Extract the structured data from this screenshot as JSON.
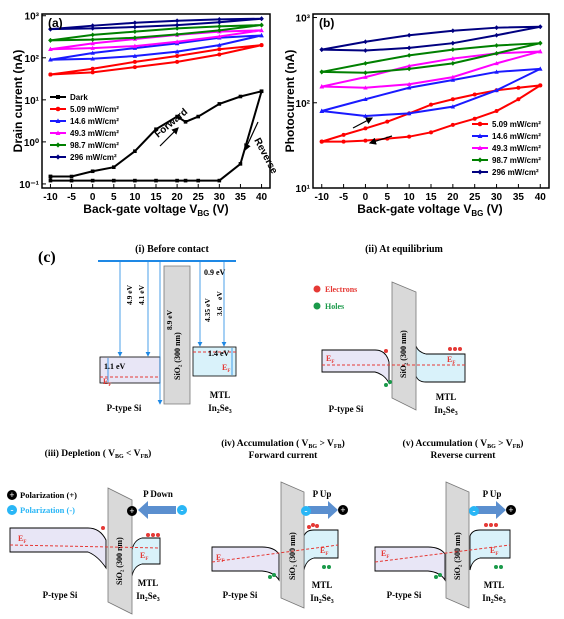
{
  "panel_a": {
    "tag": "(a)",
    "ylabel": "Drain current (nA)",
    "xlabel": "Back-gate voltage V",
    "xlabel_sub": "BG",
    "xlabel_unit": " (V)",
    "xticks": [
      "-10",
      "-5",
      "0",
      "5",
      "10",
      "15",
      "20",
      "25",
      "30",
      "35",
      "40"
    ],
    "yticks": [
      "10⁻¹",
      "10⁰",
      "10¹",
      "10²",
      "10³"
    ],
    "forward": "Forward",
    "reverse": "Reverse",
    "legend": [
      "Dark",
      "5.09 mW/cm²",
      "14.6 mW/cm²",
      "49.3 mW/cm²",
      "98.7 mW/cm²",
      "296 mW/cm²"
    ]
  },
  "panel_b": {
    "tag": "(b)",
    "ylabel": "Photocurrent (nA)",
    "xlabel": "Back-gate voltage V",
    "xlabel_sub": "BG",
    "xlabel_unit": " (V)",
    "xticks": [
      "-10",
      "-5",
      "0",
      "5",
      "10",
      "15",
      "20",
      "25",
      "30",
      "35",
      "40"
    ],
    "yticks": [
      "10¹",
      "10²",
      "10³"
    ],
    "legend": [
      "5.09 mW/cm²",
      "14.6 mW/cm²",
      "49.3 mW/cm²",
      "98.7 mW/cm²",
      "296  mW/cm²"
    ]
  },
  "colors": {
    "dark": "#000000",
    "s5": "#ff0000",
    "s14": "#1a1aff",
    "s49": "#ff00ff",
    "s98": "#008000",
    "s296": "#000080",
    "band_blue": "#1e88e5",
    "fill_si": "#e8e6f6",
    "fill_in": "#d9f2fa",
    "arrow": "#5b8fcf",
    "holes": "#1a9a4a",
    "electrons": "#e53935"
  },
  "chart_data": [
    {
      "type": "line",
      "title": "",
      "xlabel": "Back-gate voltage V_BG (V)",
      "ylabel": "Drain current (nA)",
      "xlim": [
        -12,
        42
      ],
      "ylim": [
        0.08,
        1100
      ],
      "yscale": "log",
      "legend_position": "center-left",
      "series": [
        {
          "name": "Dark",
          "x": [
            -10,
            -5,
            0,
            5,
            10,
            15,
            20,
            22,
            25,
            30,
            35,
            40
          ],
          "y_forward": [
            0.15,
            0.15,
            0.2,
            0.25,
            0.6,
            2,
            4,
            3,
            4,
            8,
            12,
            16
          ],
          "y_reverse": [
            0.12,
            0.12,
            0.12,
            0.12,
            0.12,
            0.12,
            0.12,
            0.12,
            0.12,
            0.12,
            0.3,
            16
          ]
        },
        {
          "name": "5.09 mW/cm²",
          "x": [
            -10,
            0,
            10,
            20,
            30,
            40
          ],
          "y_forward": [
            40,
            55,
            80,
            110,
            160,
            200
          ],
          "y_reverse": [
            40,
            45,
            60,
            80,
            120,
            200
          ]
        },
        {
          "name": "14.6 mW/cm²",
          "x": [
            -10,
            0,
            10,
            20,
            30,
            40
          ],
          "y_forward": [
            90,
            130,
            170,
            220,
            300,
            340
          ],
          "y_reverse": [
            90,
            95,
            110,
            140,
            200,
            340
          ]
        },
        {
          "name": "49.3 mW/cm²",
          "x": [
            -10,
            0,
            10,
            20,
            30,
            40
          ],
          "y_forward": [
            160,
            220,
            280,
            350,
            420,
            450
          ],
          "y_reverse": [
            160,
            170,
            190,
            240,
            320,
            450
          ]
        },
        {
          "name": "98.7 mW/cm²",
          "x": [
            -10,
            0,
            10,
            20,
            30,
            40
          ],
          "y_forward": [
            260,
            350,
            420,
            500,
            560,
            600
          ],
          "y_reverse": [
            260,
            270,
            300,
            360,
            450,
            600
          ]
        },
        {
          "name": "296 mW/cm²",
          "x": [
            -10,
            0,
            10,
            20,
            30,
            40
          ],
          "y_forward": [
            480,
            580,
            680,
            760,
            820,
            850
          ],
          "y_reverse": [
            480,
            500,
            540,
            600,
            700,
            850
          ]
        }
      ]
    },
    {
      "type": "line",
      "title": "",
      "xlabel": "Back-gate voltage V_BG (V)",
      "ylabel": "Photocurrent (nA)",
      "xlim": [
        -12,
        42
      ],
      "ylim": [
        10,
        1100
      ],
      "yscale": "log",
      "legend_position": "bottom-right",
      "series": [
        {
          "name": "5.09 mW/cm²",
          "x": [
            -10,
            -5,
            0,
            5,
            10,
            15,
            20,
            25,
            30,
            35,
            40
          ],
          "y_forward": [
            35,
            42,
            50,
            60,
            75,
            95,
            110,
            125,
            140,
            150,
            160
          ],
          "y_reverse": [
            35,
            35,
            36,
            38,
            40,
            45,
            55,
            65,
            80,
            110,
            160
          ]
        },
        {
          "name": "14.6 mW/cm²",
          "x": [
            -10,
            0,
            10,
            20,
            30,
            40
          ],
          "y_forward": [
            80,
            110,
            150,
            185,
            230,
            250
          ],
          "y_reverse": [
            80,
            70,
            75,
            90,
            140,
            250
          ]
        },
        {
          "name": "49.3 mW/cm²",
          "x": [
            -10,
            0,
            10,
            20,
            30,
            40
          ],
          "y_forward": [
            155,
            200,
            270,
            330,
            380,
            400
          ],
          "y_reverse": [
            155,
            150,
            165,
            200,
            290,
            400
          ]
        },
        {
          "name": "98.7 mW/cm²",
          "x": [
            -10,
            0,
            10,
            20,
            30,
            40
          ],
          "y_forward": [
            230,
            290,
            360,
            420,
            470,
            500
          ],
          "y_reverse": [
            230,
            225,
            250,
            290,
            380,
            500
          ]
        },
        {
          "name": "296  mW/cm²",
          "x": [
            -10,
            0,
            10,
            20,
            30,
            40
          ],
          "y_forward": [
            420,
            520,
            620,
            700,
            760,
            780
          ],
          "y_reverse": [
            420,
            410,
            440,
            500,
            620,
            780
          ]
        }
      ]
    }
  ],
  "panel_c": {
    "tag": "(c)",
    "sub_i": "(i) Before contact",
    "sub_ii": "(ii) At equilibrium",
    "sub_iii": "(iii) Depletion ( V",
    "sub_iii_rest": " < V",
    "sub_iv": "(iv) Accumulation ( V",
    "sub_iv_rest": " > V",
    "sub_iv_line2": "Forward current",
    "sub_v": "(v) Accumulation ( V",
    "sub_v_rest": " > V",
    "sub_v_line2": "Reverse current",
    "sub_bg": "BG",
    "sub_fb": "FB",
    "close_paren": ")",
    "e_09": "0.9 eV",
    "e_49": "4.9 eV",
    "e_41": "4.1 eV",
    "e_89": "8.9 eV",
    "e_435": "4.35 eV",
    "e_36": "3.6",
    "e_36b": "eV",
    "e_11": "1.1 eV",
    "e_14": "1.4 eV",
    "ef": "E",
    "ef_sub": "F",
    "ptype": "P-type Si",
    "mtl": "MTL",
    "in2se3_a": "In",
    "in2se3_b": "2",
    "in2se3_c": "Se",
    "in2se3_d": "3",
    "oxide": "SiO₂ (300 nm)",
    "electrons": "Electrons",
    "holes": "Holes",
    "pol_plus": "Polarization (+)",
    "pol_minus": "Polarization (-)",
    "p_down": "P Down",
    "p_up": "P Up",
    "plus": "+",
    "minus": "-"
  }
}
